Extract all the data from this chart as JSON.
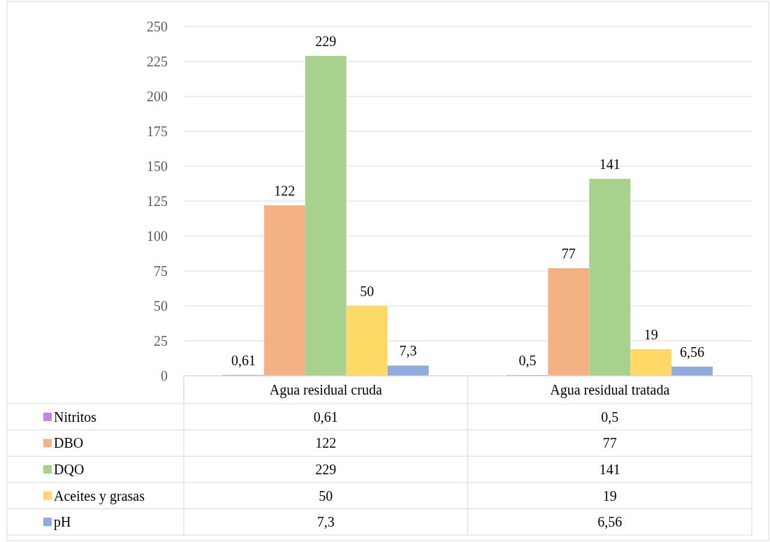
{
  "chart_data": {
    "type": "bar",
    "categories": [
      "Agua residual cruda",
      "Agua residual tratada"
    ],
    "series": [
      {
        "name": "Nitritos",
        "color": "#c580e0",
        "values": [
          0.61,
          0.5
        ],
        "value_labels": [
          "0,61",
          "0,5"
        ]
      },
      {
        "name": "DBO",
        "color": "#f4b183",
        "values": [
          122,
          77
        ],
        "value_labels": [
          "122",
          "77"
        ]
      },
      {
        "name": "DQO",
        "color": "#a9d18e",
        "values": [
          229,
          141
        ],
        "value_labels": [
          "229",
          "141"
        ]
      },
      {
        "name": "Aceites y grasas",
        "color": "#ffd966",
        "values": [
          50,
          19
        ],
        "value_labels": [
          "50",
          "19"
        ]
      },
      {
        "name": "pH",
        "color": "#8faadc",
        "values": [
          7.3,
          6.56
        ],
        "value_labels": [
          "7,3",
          "6,56"
        ]
      }
    ],
    "ylim": [
      0,
      250
    ],
    "yticks": [
      0,
      25,
      50,
      75,
      100,
      125,
      150,
      175,
      200,
      225,
      250
    ],
    "grid": "y",
    "legend": "bottom"
  }
}
